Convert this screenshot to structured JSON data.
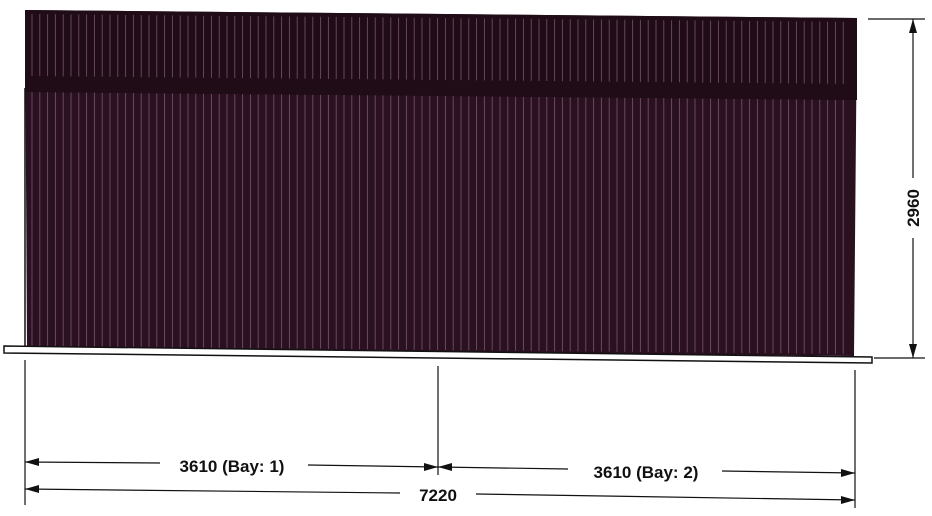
{
  "drawing": {
    "colors": {
      "panel": "#2a1120",
      "header": "#1f0c16",
      "rib": "#8e5f84",
      "ground": "#ffffff",
      "line": "#111111"
    },
    "dimensions": {
      "height": "2960",
      "bay1": "3610 (Bay: 1)",
      "bay2": "3610 (Bay: 2)",
      "total": "7220"
    }
  }
}
